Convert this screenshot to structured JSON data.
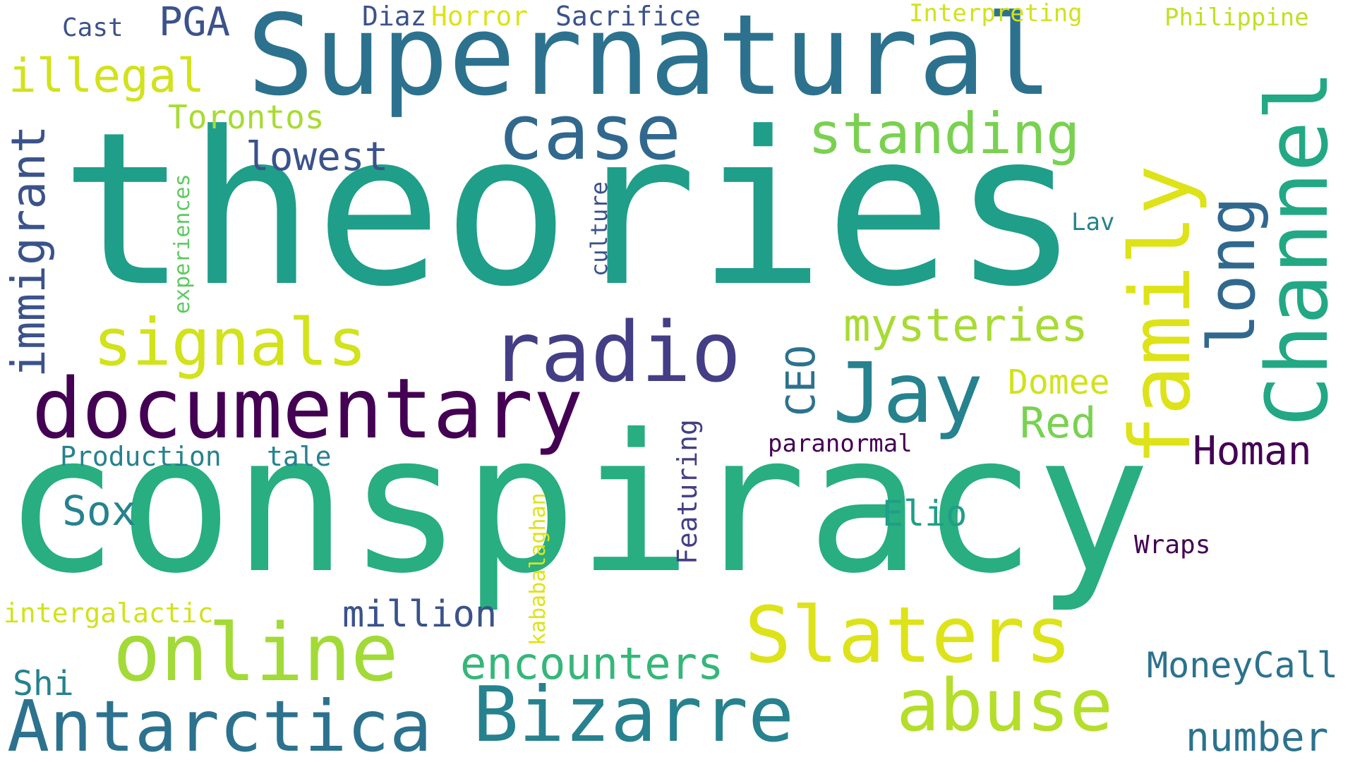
{
  "palette": {
    "dark_purple": "#440154",
    "indigo": "#443983",
    "slate_blue": "#3b528b",
    "steel_blue": "#31688e",
    "teal_blue": "#26828e",
    "teal": "#1f9e89",
    "sea_green": "#2a9d8f",
    "green": "#35b779",
    "light_green": "#6ece58",
    "lime": "#b5de2b",
    "yellow": "#dde318",
    "yellow_green": "#c2df23"
  },
  "words": {
    "theories": "theories",
    "conspiracy": "conspiracy",
    "supernatural": "Supernatural",
    "documentary": "documentary",
    "radio": "radio",
    "channel": "Channel",
    "family": "family",
    "slaters": "Slaters",
    "bizarre": "Bizarre",
    "antarctica": "Antarctica",
    "abuse": "abuse",
    "online": "online",
    "case": "case",
    "signals": "signals",
    "jay": "Jay",
    "standing": "standing",
    "long": "long",
    "mysteries": "mysteries",
    "encounters": "encounters",
    "immigrant": "immigrant",
    "homan": "Homan",
    "illegal": "illegal",
    "moneycall": "MoneyCall",
    "number": "number",
    "sox": "Sox",
    "red": "Red",
    "domee": "Domee",
    "million": "million",
    "lowest": "lowest",
    "torontos": "Torontos",
    "elio": "Elio",
    "ceo": "CEO",
    "pga": "PGA",
    "shi": "Shi",
    "production": "Production",
    "tale": "tale",
    "sacrifice": "Sacrifice",
    "horror": "Horror",
    "diaz": "Diaz",
    "interpreting": "Interpreting",
    "philippine": "Philippine",
    "cast": "Cast",
    "intergalactic": "intergalactic",
    "paranormal": "paranormal",
    "wraps": "Wraps",
    "featuring": "Featuring",
    "kababalaghan": "kababalaghan",
    "experiences": "experiences",
    "culture": "culture",
    "lav": "Lav"
  }
}
